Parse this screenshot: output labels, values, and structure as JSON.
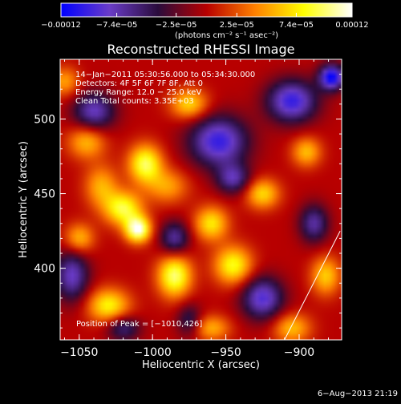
{
  "chart_data": {
    "type": "heatmap",
    "title": "Reconstructed RHESSI Image",
    "xlabel": "Heliocentric X (arcsec)",
    "ylabel": "Heliocentric Y (arcsec)",
    "xlim": [
      -1063,
      -871
    ],
    "ylim": [
      352,
      540
    ],
    "x_ticks": [
      {
        "value": -1050,
        "label": "−1050"
      },
      {
        "value": -1000,
        "label": "−1000"
      },
      {
        "value": -950,
        "label": "−950"
      },
      {
        "value": -900,
        "label": "−900"
      }
    ],
    "y_ticks": [
      {
        "value": 400,
        "label": "400"
      },
      {
        "value": 450,
        "label": "450"
      },
      {
        "value": 500,
        "label": "500"
      }
    ],
    "colorbar": {
      "label": "(photons cm⁻² s⁻¹ asec⁻²)",
      "range": [
        -0.00012,
        0.00012
      ],
      "ticks": [
        {
          "value": -0.00012,
          "label": "−0.00012"
        },
        {
          "value": -7.4e-05,
          "label": "−7.4e−05"
        },
        {
          "value": -2.5e-05,
          "label": "−2.5e−05"
        },
        {
          "value": 2.5e-05,
          "label": "2.5e−05"
        },
        {
          "value": 7.4e-05,
          "label": "7.4e−05"
        },
        {
          "value": 0.00012,
          "label": "0.00012"
        }
      ],
      "colors": [
        "#0000ff",
        "#6a3cc8",
        "#2a0c3c",
        "#b80000",
        "#ff8000",
        "#ffff00",
        "#ffffff"
      ]
    },
    "info_lines": [
      "14−Jan−2011 05:30:56.000 to 05:34:30.000",
      "Detectors: 4F 5F 6F 7F 8F, Att 0",
      "Energy Range: 12.0 − 25.0 keV",
      "Clean     Total counts: 3.35E+03"
    ],
    "peak_label": "Position of Peak = [−1010,426]",
    "peak": {
      "x": -1010,
      "y": 426
    },
    "limb_line": [
      {
        "x": -910,
        "y": 352
      },
      {
        "x": -872,
        "y": 425
      }
    ],
    "blobs": [
      {
        "x": -1005,
        "y": 470,
        "sx": 8,
        "sy": 9,
        "a": 9.5e-05
      },
      {
        "x": -1020,
        "y": 440,
        "sx": 9,
        "sy": 8,
        "a": 9e-05
      },
      {
        "x": -1010,
        "y": 426,
        "sx": 6,
        "sy": 6,
        "a": 0.00012
      },
      {
        "x": -985,
        "y": 395,
        "sx": 8,
        "sy": 10,
        "a": 0.0001
      },
      {
        "x": -1030,
        "y": 375,
        "sx": 10,
        "sy": 8,
        "a": 8e-05
      },
      {
        "x": -960,
        "y": 430,
        "sx": 8,
        "sy": 8,
        "a": 7.5e-05
      },
      {
        "x": -945,
        "y": 402,
        "sx": 9,
        "sy": 9,
        "a": 8.5e-05
      },
      {
        "x": -925,
        "y": 450,
        "sx": 8,
        "sy": 7,
        "a": 7e-05
      },
      {
        "x": -975,
        "y": 510,
        "sx": 9,
        "sy": 7,
        "a": 7e-05
      },
      {
        "x": -1045,
        "y": 485,
        "sx": 9,
        "sy": 8,
        "a": 6e-05
      },
      {
        "x": -1050,
        "y": 420,
        "sx": 7,
        "sy": 7,
        "a": 6e-05
      },
      {
        "x": -895,
        "y": 478,
        "sx": 7,
        "sy": 7,
        "a": 6e-05
      },
      {
        "x": -882,
        "y": 395,
        "sx": 7,
        "sy": 9,
        "a": 6.5e-05
      },
      {
        "x": -905,
        "y": 360,
        "sx": 9,
        "sy": 7,
        "a": 6e-05
      },
      {
        "x": -960,
        "y": 360,
        "sx": 9,
        "sy": 6,
        "a": 5.5e-05
      },
      {
        "x": -1060,
        "y": 525,
        "sx": 7,
        "sy": 7,
        "a": 5e-05
      },
      {
        "x": -990,
        "y": 455,
        "sx": 10,
        "sy": 8,
        "a": 5e-05
      },
      {
        "x": -1035,
        "y": 455,
        "sx": 8,
        "sy": 10,
        "a": 5.5e-05
      },
      {
        "x": -1040,
        "y": 505,
        "sx": 10,
        "sy": 9,
        "a": -8e-05
      },
      {
        "x": -955,
        "y": 485,
        "sx": 14,
        "sy": 12,
        "a": -0.0001
      },
      {
        "x": -905,
        "y": 512,
        "sx": 12,
        "sy": 10,
        "a": -0.0001
      },
      {
        "x": -878,
        "y": 528,
        "sx": 6,
        "sy": 6,
        "a": -0.00012
      },
      {
        "x": -1055,
        "y": 395,
        "sx": 8,
        "sy": 12,
        "a": -8e-05
      },
      {
        "x": -985,
        "y": 420,
        "sx": 7,
        "sy": 8,
        "a": -7e-05
      },
      {
        "x": -925,
        "y": 380,
        "sx": 10,
        "sy": 10,
        "a": -9e-05
      },
      {
        "x": -945,
        "y": 460,
        "sx": 8,
        "sy": 7,
        "a": -7e-05
      },
      {
        "x": -1020,
        "y": 360,
        "sx": 8,
        "sy": 6,
        "a": -6e-05
      },
      {
        "x": -975,
        "y": 365,
        "sx": 6,
        "sy": 8,
        "a": -5e-05
      },
      {
        "x": -890,
        "y": 430,
        "sx": 7,
        "sy": 9,
        "a": -7e-05
      }
    ]
  },
  "footer": {
    "timestamp": "6−Aug−2013 21:19"
  }
}
